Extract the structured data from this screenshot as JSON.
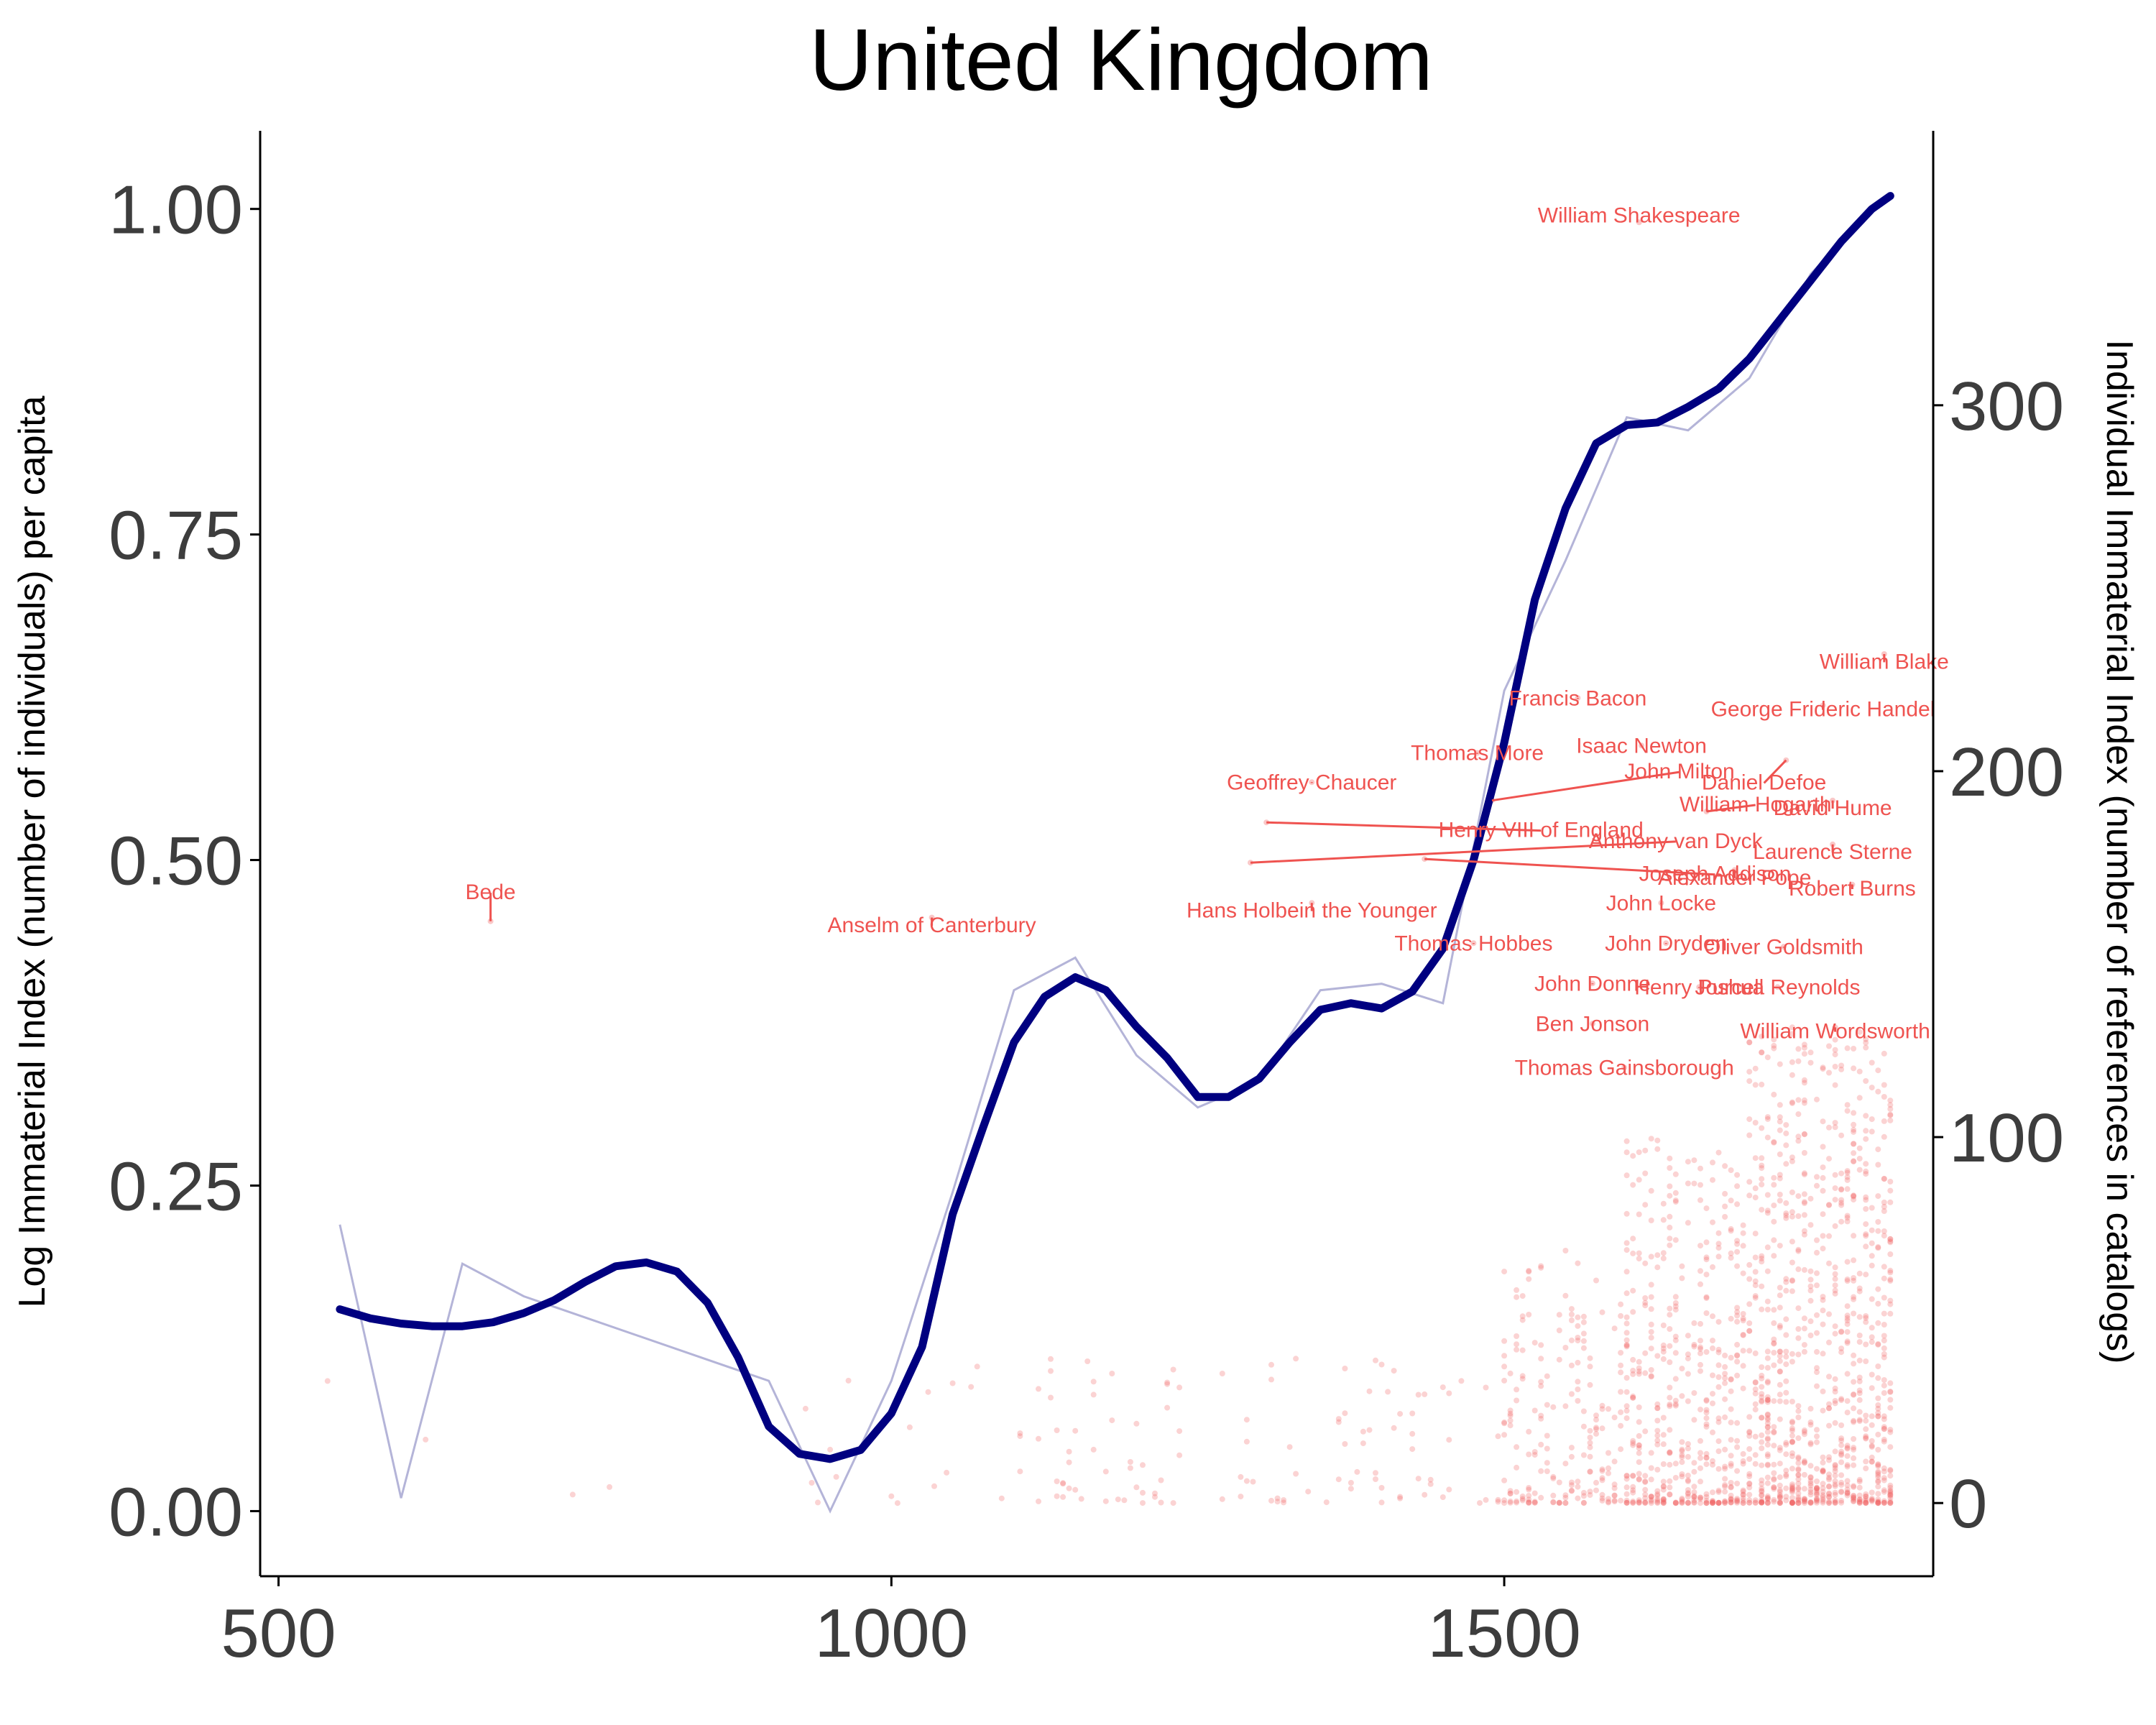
{
  "chart_data": {
    "type": "line",
    "title": "United Kingdom",
    "xlabel": "",
    "ylabel": "Log Immaterial Index (number of individuals) per capita",
    "y2label": "Individual Immaterial Index (number of references in catalogs)",
    "xlim": [
      485,
      1850
    ],
    "ylim": [
      -0.05,
      1.06
    ],
    "y2lim": [
      -20,
      375
    ],
    "x_ticks": [
      "500",
      "1000",
      "1500"
    ],
    "x_tick_values": [
      500,
      1000,
      1500
    ],
    "y_ticks": [
      "0.00",
      "0.25",
      "0.50",
      "0.75",
      "1.00"
    ],
    "y_tick_values": [
      0,
      0.25,
      0.5,
      0.75,
      1.0
    ],
    "y2_ticks": [
      "0",
      "100",
      "200",
      "300"
    ],
    "y2_tick_values": [
      0,
      100,
      200,
      300
    ],
    "grid": false,
    "colors": {
      "smooth": "#000080",
      "raw": "#b4b4d8",
      "points": "#f06060",
      "labels": "#ef5350"
    },
    "series": [
      {
        "style": "thin-line",
        "x": [
          550,
          600,
          650,
          700,
          900,
          950,
          1000,
          1050,
          1100,
          1150,
          1200,
          1250,
          1300,
          1350,
          1400,
          1450,
          1500,
          1550,
          1600,
          1650,
          1700,
          1750,
          1800
        ],
        "y": [
          0.22,
          0.01,
          0.19,
          0.165,
          0.1,
          0.0,
          0.1,
          0.245,
          0.4,
          0.425,
          0.35,
          0.31,
          0.33,
          0.4,
          0.405,
          0.39,
          0.63,
          0.73,
          0.84,
          0.83,
          0.87,
          0.95,
          1.0
        ]
      },
      {
        "style": "smooth",
        "x": [
          550,
          575,
          600,
          625,
          650,
          675,
          700,
          725,
          750,
          775,
          800,
          825,
          850,
          875,
          900,
          925,
          950,
          975,
          1000,
          1025,
          1050,
          1075,
          1100,
          1125,
          1150,
          1175,
          1200,
          1225,
          1250,
          1275,
          1300,
          1325,
          1350,
          1375,
          1400,
          1425,
          1450,
          1475,
          1500,
          1525,
          1550,
          1575,
          1600,
          1625,
          1650,
          1675,
          1700,
          1725,
          1750,
          1775,
          1800,
          1815
        ],
        "y": [
          0.155,
          0.148,
          0.144,
          0.142,
          0.142,
          0.145,
          0.152,
          0.162,
          0.176,
          0.188,
          0.191,
          0.184,
          0.16,
          0.118,
          0.065,
          0.044,
          0.04,
          0.047,
          0.075,
          0.126,
          0.228,
          0.295,
          0.36,
          0.395,
          0.41,
          0.4,
          0.372,
          0.348,
          0.318,
          0.318,
          0.332,
          0.36,
          0.385,
          0.39,
          0.386,
          0.399,
          0.432,
          0.5,
          0.59,
          0.7,
          0.77,
          0.82,
          0.834,
          0.836,
          0.848,
          0.862,
          0.885,
          0.915,
          0.945,
          0.975,
          1.0,
          1.01
        ]
      }
    ],
    "annotations": [
      {
        "label": "William Shakespeare",
        "x": 1610,
        "y2": 350,
        "lx": 1610,
        "ly2": 350
      },
      {
        "label": "William Blake",
        "x": 1810,
        "y2": 232,
        "lx": 1810,
        "ly2": 228
      },
      {
        "label": "Francis Bacon",
        "x": 1560,
        "y2": 220,
        "lx": 1560,
        "ly2": 218
      },
      {
        "label": "George Frideric Handel",
        "x": 1760,
        "y2": 218,
        "lx": 1760,
        "ly2": 215
      },
      {
        "label": "Isaac Newton",
        "x": 1612,
        "y2": 207,
        "lx": 1612,
        "ly2": 205
      },
      {
        "label": "Thomas More",
        "x": 1478,
        "y2": 205,
        "lx": 1478,
        "ly2": 203
      },
      {
        "label": "Daniel Defoe",
        "x": 1730,
        "y2": 203,
        "lx": 1712,
        "ly2": 195
      },
      {
        "label": "Geoffrey Chaucer",
        "x": 1343,
        "y2": 197,
        "lx": 1343,
        "ly2": 195
      },
      {
        "label": "John Milton",
        "x": 1490,
        "y2": 192,
        "lx": 1643,
        "ly2": 198
      },
      {
        "label": "William Hogarth",
        "x": 1665,
        "y2": 189,
        "lx": 1705,
        "ly2": 189
      },
      {
        "label": "David Hume",
        "x": 1768,
        "y2": 192,
        "lx": 1768,
        "ly2": 188
      },
      {
        "label": "Henry VIII of England",
        "x": 1306,
        "y2": 186,
        "lx": 1530,
        "ly2": 182
      },
      {
        "label": "Laurence Sterne",
        "x": 1768,
        "y2": 180,
        "lx": 1768,
        "ly2": 176
      },
      {
        "label": "Anthony van Dyck",
        "x": 1293,
        "y2": 175,
        "lx": 1640,
        "ly2": 179
      },
      {
        "label": "Joseph Addison",
        "x": 1435,
        "y2": 176,
        "lx": 1672,
        "ly2": 170
      },
      {
        "label": "Alexander Pope",
        "x": 1688,
        "y2": 173,
        "lx": 1688,
        "ly2": 169
      },
      {
        "label": "Robert Burns",
        "x": 1784,
        "y2": 169,
        "lx": 1784,
        "ly2": 166
      },
      {
        "label": "Hans Holbein the Younger",
        "x": 1343,
        "y2": 164,
        "lx": 1343,
        "ly2": 160
      },
      {
        "label": "John Locke",
        "x": 1628,
        "y2": 164,
        "lx": 1628,
        "ly2": 162
      },
      {
        "label": "Thomas Hobbes",
        "x": 1475,
        "y2": 153,
        "lx": 1475,
        "ly2": 151
      },
      {
        "label": "John Dryden",
        "x": 1632,
        "y2": 153,
        "lx": 1632,
        "ly2": 151
      },
      {
        "label": "Oliver Goldsmith",
        "x": 1728,
        "y2": 152,
        "lx": 1728,
        "ly2": 150
      },
      {
        "label": "John Donne",
        "x": 1572,
        "y2": 142,
        "lx": 1572,
        "ly2": 140
      },
      {
        "label": "Henry Purcell",
        "x": 1659,
        "y2": 141,
        "lx": 1659,
        "ly2": 139
      },
      {
        "label": "Joshua Reynolds",
        "x": 1723,
        "y2": 141,
        "lx": 1723,
        "ly2": 139
      },
      {
        "label": "Ben Jonson",
        "x": 1572,
        "y2": 131,
        "lx": 1572,
        "ly2": 129
      },
      {
        "label": "William Wordsworth",
        "x": 1770,
        "y2": 130,
        "lx": 1770,
        "ly2": 127
      },
      {
        "label": "Thomas Gainsborough",
        "x": 1598,
        "y2": 119,
        "lx": 1598,
        "ly2": 117
      },
      {
        "label": "Bede",
        "x": 673,
        "y2": 159,
        "lx": 673,
        "ly2": 165
      },
      {
        "label": "Anselm of Canterbury",
        "x": 1033,
        "y2": 160,
        "lx": 1033,
        "ly2": 156
      }
    ]
  }
}
